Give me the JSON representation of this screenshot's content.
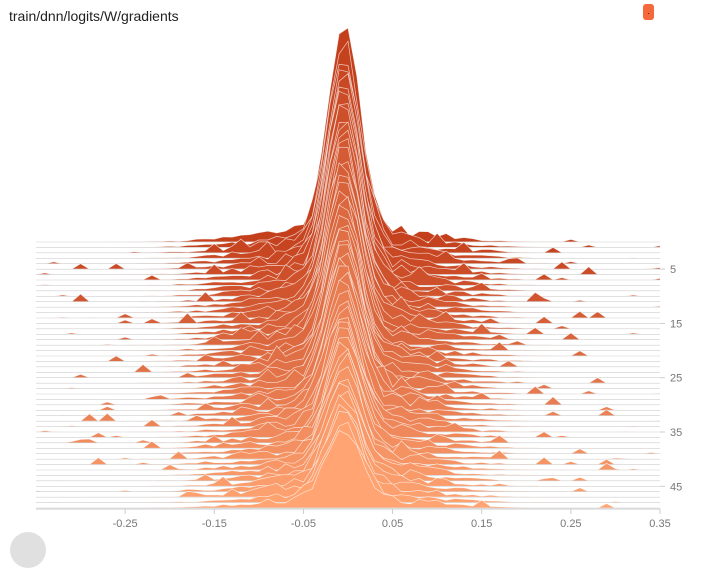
{
  "header": {
    "title": "train/dnn/logits/W/gradients"
  },
  "colors": {
    "oldest": "#c4401d",
    "newest": "#ffa472",
    "stroke": "#ffffff",
    "axis": "#cccccc",
    "tick_text": "#777777"
  },
  "chart_data": {
    "type": "histogram-offset",
    "title": "train/dnn/logits/W/gradients",
    "x_ticks": [
      -0.25,
      -0.15,
      -0.05,
      0.05,
      0.15,
      0.25,
      0.35
    ],
    "x_tick_labels": [
      "-0.25",
      "-0.15",
      "-0.05",
      "0.05",
      "0.15",
      "0.25",
      "0.35"
    ],
    "x_range": [
      -0.35,
      0.35
    ],
    "y_ticks": [
      5,
      15,
      25,
      35,
      45
    ],
    "y_tick_labels": [
      "5",
      "15",
      "25",
      "35",
      "45"
    ],
    "step_range": [
      0,
      49
    ],
    "n_histograms": 50,
    "distribution_center": -0.005,
    "peak_height_range": [
      0.5,
      1.0
    ]
  }
}
